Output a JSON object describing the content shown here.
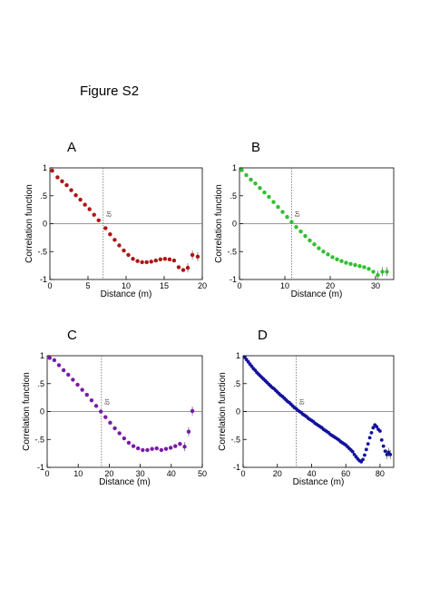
{
  "figure_title": "Figure S2",
  "chart_data": [
    {
      "type": "scatter",
      "panel_label": "A",
      "xlabel": "Distance (m)",
      "ylabel": "Correlation function",
      "xlim": [
        0,
        20
      ],
      "ylim": [
        -1,
        1
      ],
      "xticks": [
        0,
        5,
        10,
        15,
        20
      ],
      "yticks": [
        -1,
        -0.5,
        0,
        0.5,
        1
      ],
      "reference_line_y": 0,
      "marker_x": 7,
      "marker_label": "ξrt",
      "color": "#b01414",
      "series": [
        {
          "x": [
            0.3,
            1.0,
            1.6,
            2.2,
            2.8,
            3.4,
            4.0,
            4.6,
            5.2,
            5.8,
            6.4,
            7.3,
            7.9,
            8.5,
            9.1,
            9.7,
            10.3,
            10.9,
            11.5,
            12.1,
            12.7,
            13.3,
            13.9,
            14.5,
            15.1,
            15.7,
            16.3,
            16.9,
            17.5,
            18.1,
            18.7,
            19.4
          ],
          "y": [
            0.95,
            0.83,
            0.76,
            0.69,
            0.6,
            0.51,
            0.43,
            0.34,
            0.26,
            0.16,
            0.06,
            -0.08,
            -0.19,
            -0.29,
            -0.39,
            -0.48,
            -0.56,
            -0.63,
            -0.67,
            -0.69,
            -0.69,
            -0.68,
            -0.66,
            -0.64,
            -0.63,
            -0.64,
            -0.66,
            -0.78,
            -0.83,
            -0.79,
            -0.56,
            -0.59
          ]
        }
      ]
    },
    {
      "type": "scatter",
      "panel_label": "B",
      "xlabel": "Distance (m)",
      "ylabel": "Correlation function",
      "xlim": [
        0,
        34
      ],
      "ylim": [
        -1,
        1
      ],
      "xticks": [
        0,
        10,
        20,
        30
      ],
      "yticks": [
        -1,
        -0.5,
        0,
        0.5,
        1
      ],
      "reference_line_y": 0,
      "marker_x": 11.5,
      "marker_label": "ξrt",
      "color": "#2fc02f",
      "series": [
        {
          "x": [
            0.5,
            1.5,
            2.5,
            3.5,
            4.5,
            5.5,
            6.5,
            7.5,
            8.5,
            9.5,
            10.5,
            11.5,
            12.5,
            13.5,
            14.5,
            15.5,
            16.5,
            17.5,
            18.5,
            19.5,
            20.5,
            21.5,
            22.5,
            23.5,
            24.5,
            25.5,
            26.5,
            27.5,
            28.5,
            29.5,
            30.5,
            31.5,
            32.5
          ],
          "y": [
            0.96,
            0.87,
            0.79,
            0.72,
            0.64,
            0.56,
            0.48,
            0.39,
            0.3,
            0.21,
            0.12,
            0.03,
            -0.06,
            -0.14,
            -0.22,
            -0.3,
            -0.37,
            -0.44,
            -0.5,
            -0.55,
            -0.6,
            -0.64,
            -0.67,
            -0.7,
            -0.72,
            -0.74,
            -0.76,
            -0.78,
            -0.81,
            -0.86,
            -0.92,
            -0.86,
            -0.86
          ]
        }
      ]
    },
    {
      "type": "scatter",
      "panel_label": "C",
      "xlabel": "Distance (m)",
      "ylabel": "Correlation function",
      "xlim": [
        0,
        50
      ],
      "ylim": [
        -1,
        1
      ],
      "xticks": [
        0,
        10,
        20,
        30,
        40,
        50
      ],
      "yticks": [
        -1,
        -0.5,
        0,
        0.5,
        1
      ],
      "reference_line_y": 0,
      "marker_x": 17.5,
      "marker_label": "ξrt",
      "color": "#7a1aa8",
      "series": [
        {
          "x": [
            0.8,
            2.3,
            3.8,
            5.3,
            6.8,
            8.3,
            9.8,
            11.3,
            12.8,
            14.3,
            15.8,
            17.3,
            18.8,
            20.3,
            21.8,
            23.3,
            24.8,
            26.3,
            27.8,
            29.3,
            30.8,
            32.3,
            33.8,
            35.3,
            36.8,
            38.3,
            39.8,
            41.3,
            42.8,
            44.3,
            45.6,
            46.8
          ],
          "y": [
            0.96,
            0.92,
            0.83,
            0.74,
            0.66,
            0.57,
            0.48,
            0.39,
            0.3,
            0.2,
            0.1,
            0.0,
            -0.1,
            -0.2,
            -0.3,
            -0.39,
            -0.48,
            -0.56,
            -0.62,
            -0.66,
            -0.69,
            -0.69,
            -0.67,
            -0.66,
            -0.69,
            -0.67,
            -0.65,
            -0.62,
            -0.58,
            -0.63,
            -0.36,
            0.01
          ]
        }
      ]
    },
    {
      "type": "scatter",
      "panel_label": "D",
      "xlabel": "Distance (m)",
      "ylabel": "Correlation function",
      "xlim": [
        0,
        88
      ],
      "ylim": [
        -1,
        1
      ],
      "xticks": [
        0,
        20,
        40,
        60,
        80
      ],
      "yticks": [
        -1,
        -0.5,
        0,
        0.5,
        1
      ],
      "reference_line_y": 0,
      "marker_x": 31,
      "marker_label": "ξrt",
      "color": "#12129c",
      "series": [
        {
          "x": [
            1,
            2,
            3,
            4,
            5,
            6,
            7,
            8,
            9,
            10,
            11,
            12,
            13,
            14,
            15,
            16,
            17,
            18,
            19,
            20,
            21,
            22,
            23,
            24,
            25,
            26,
            27,
            28,
            29,
            30,
            31,
            32,
            33,
            34,
            35,
            36,
            37,
            38,
            39,
            40,
            41,
            42,
            43,
            44,
            45,
            46,
            47,
            48,
            49,
            50,
            51,
            52,
            53,
            54,
            55,
            56,
            57,
            58,
            59,
            60,
            61,
            62,
            63,
            64,
            65,
            66,
            67,
            68,
            69,
            70,
            71,
            72,
            73,
            74,
            75,
            76,
            77,
            78,
            79,
            80,
            81,
            82,
            83,
            84,
            85,
            86
          ],
          "y": [
            0.97,
            0.93,
            0.89,
            0.85,
            0.81,
            0.77,
            0.74,
            0.7,
            0.67,
            0.64,
            0.61,
            0.58,
            0.55,
            0.52,
            0.49,
            0.46,
            0.43,
            0.41,
            0.38,
            0.35,
            0.32,
            0.29,
            0.27,
            0.24,
            0.21,
            0.18,
            0.16,
            0.13,
            0.1,
            0.07,
            0.05,
            0.02,
            0.0,
            -0.02,
            -0.05,
            -0.07,
            -0.09,
            -0.12,
            -0.14,
            -0.16,
            -0.18,
            -0.21,
            -0.23,
            -0.25,
            -0.27,
            -0.29,
            -0.32,
            -0.34,
            -0.36,
            -0.38,
            -0.41,
            -0.43,
            -0.45,
            -0.47,
            -0.49,
            -0.51,
            -0.54,
            -0.56,
            -0.58,
            -0.6,
            -0.63,
            -0.66,
            -0.69,
            -0.72,
            -0.77,
            -0.81,
            -0.85,
            -0.88,
            -0.9,
            -0.86,
            -0.78,
            -0.68,
            -0.58,
            -0.47,
            -0.38,
            -0.29,
            -0.24,
            -0.27,
            -0.32,
            -0.35,
            -0.51,
            -0.62,
            -0.71,
            -0.77,
            -0.73,
            -0.77
          ]
        }
      ]
    }
  ]
}
